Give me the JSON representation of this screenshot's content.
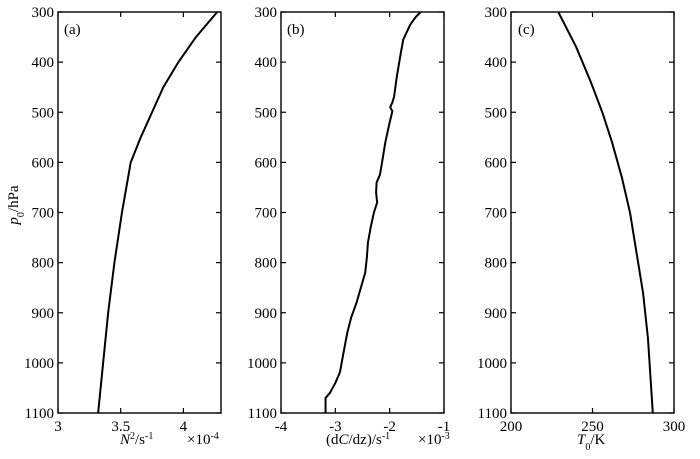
{
  "chart_data": [
    {
      "type": "line",
      "panel_label": "(a)",
      "xlabel": "N²/s⁻¹",
      "xlabel_parts": {
        "base": "N",
        "sup1": "2",
        "mid": "/s",
        "sup2": "-1"
      },
      "x_multiplier": "×10",
      "x_multiplier_exp": "-4",
      "ylabel": "p0/hPa",
      "ylabel_parts": {
        "base": "p",
        "sub": "0",
        "rest": "/hPa"
      },
      "xlim": [
        3,
        4.3
      ],
      "ylim": [
        1100,
        300
      ],
      "y_reversed": true,
      "xticks": [
        3,
        3.5,
        4
      ],
      "xtick_labels": [
        "3",
        "3.5",
        "4"
      ],
      "yticks": [
        300,
        400,
        500,
        600,
        700,
        800,
        900,
        1000,
        1100
      ],
      "ytick_labels": [
        "300",
        "400",
        "500",
        "600",
        "700",
        "800",
        "900",
        "1000",
        "1100"
      ],
      "series": [
        {
          "x": [
            4.27,
            4.1,
            3.96,
            3.84,
            3.75,
            3.66,
            3.58,
            3.51,
            3.45,
            3.4,
            3.36,
            3.32
          ],
          "y": [
            300,
            350,
            400,
            450,
            500,
            550,
            600,
            700,
            800,
            900,
            1000,
            1100
          ]
        }
      ]
    },
    {
      "type": "line",
      "panel_label": "(b)",
      "xlabel": "(dC/dz)/s⁻¹",
      "xlabel_parts": {
        "pre": "(d",
        "italic": "C",
        "mid": "/dz)/s",
        "sup": "-1"
      },
      "x_multiplier": "×10",
      "x_multiplier_exp": "-3",
      "xlim": [
        -4,
        -1
      ],
      "ylim": [
        1100,
        300
      ],
      "y_reversed": true,
      "xticks": [
        -4,
        -3,
        -2,
        -1
      ],
      "xtick_labels": [
        "-4",
        "-3",
        "-2",
        "-1"
      ],
      "yticks": [
        300,
        400,
        500,
        600,
        700,
        800,
        900,
        1000,
        1100
      ],
      "ytick_labels": [
        "300",
        "400",
        "500",
        "600",
        "700",
        "800",
        "900",
        "1000",
        "1100"
      ],
      "series": [
        {
          "x": [
            -1.43,
            -1.52,
            -1.62,
            -1.75,
            -1.8,
            -1.87,
            -1.92,
            -1.95,
            -1.99,
            -1.95,
            -2.01,
            -2.08,
            -2.14,
            -2.18,
            -2.24,
            -2.25,
            -2.23,
            -2.29,
            -2.35,
            -2.4,
            -2.42,
            -2.45,
            -2.53,
            -2.61,
            -2.71,
            -2.78,
            -2.85,
            -2.9,
            -2.92,
            -3.0,
            -3.1,
            -3.18,
            -3.18
          ],
          "y": [
            300,
            310,
            325,
            355,
            385,
            430,
            470,
            480,
            490,
            498,
            525,
            560,
            600,
            625,
            640,
            660,
            680,
            700,
            730,
            760,
            790,
            820,
            850,
            880,
            910,
            940,
            980,
            1010,
            1020,
            1040,
            1060,
            1070,
            1100
          ]
        }
      ]
    },
    {
      "type": "line",
      "panel_label": "(c)",
      "xlabel": "T0/K",
      "xlabel_parts": {
        "base": "T",
        "sub": "0",
        "rest": "/K"
      },
      "xlim": [
        200,
        300
      ],
      "ylim": [
        1100,
        300
      ],
      "y_reversed": true,
      "xticks": [
        200,
        250,
        300
      ],
      "xtick_labels": [
        "200",
        "250",
        "300"
      ],
      "yticks": [
        300,
        400,
        500,
        600,
        700,
        800,
        900,
        1000,
        1100
      ],
      "ytick_labels": [
        "300",
        "400",
        "500",
        "600",
        "700",
        "800",
        "900",
        "1000",
        "1100"
      ],
      "series": [
        {
          "x": [
            229,
            240,
            249,
            256,
            262,
            268,
            273,
            277,
            281,
            284,
            287
          ],
          "y": [
            300,
            370,
            440,
            500,
            560,
            630,
            700,
            780,
            860,
            950,
            1100
          ]
        }
      ]
    }
  ]
}
